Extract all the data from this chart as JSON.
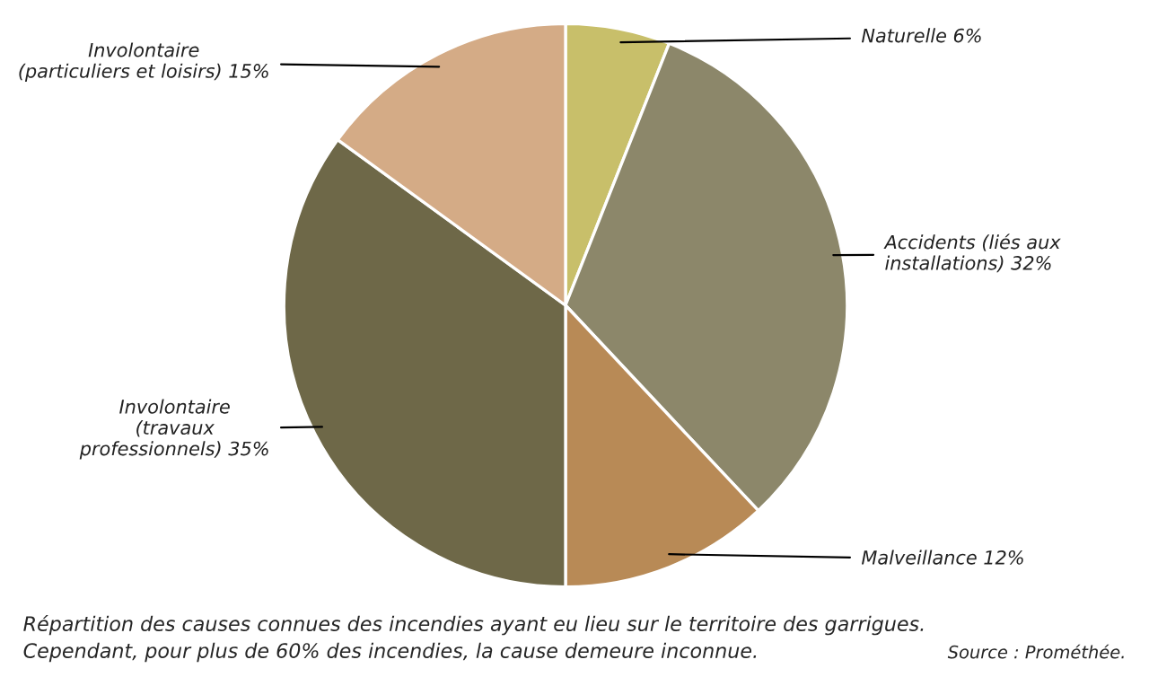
{
  "chart_data": {
    "type": "pie",
    "categories": [
      "Naturelle",
      "Accidents (liés aux\ninstallations)",
      "Malveillance",
      "Involontaire\n(travaux\nprofessionnels)",
      "Involontaire\n(particuliers et loisirs)"
    ],
    "values": [
      6,
      32,
      12,
      35,
      15
    ],
    "value_labels": [
      "6%",
      "32%",
      "12%",
      "35%",
      "15%"
    ],
    "colors": [
      "#c8bf6a",
      "#8c876a",
      "#b88a56",
      "#6e6848",
      "#d4ab86"
    ],
    "annotations": [
      "Répartition des causes connues des incendies ayant eu lieu sur le territoire des garrigues.\nCependant, pour plus de 60% des incendies, la cause demeure inconnue.",
      "Source : Prométhée."
    ]
  }
}
